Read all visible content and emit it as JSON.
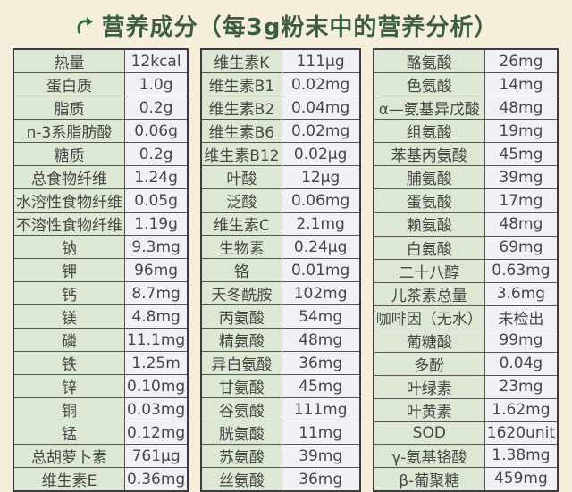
{
  "page": {
    "title": "营养成分（每3g粉末中的营养分析）",
    "icon": "curved-arrow-icon",
    "colors": {
      "background": "#f5eedb",
      "title": "#3b5d40",
      "label_bg": "#dce7d4",
      "value_bg": "#f1f1f5",
      "border": "#555555",
      "outer_border": "#3d3d3d",
      "text": "#474747",
      "icon": "#2f6b3c"
    }
  },
  "tables": [
    {
      "rows": [
        {
          "label": "热量",
          "value": "12kcal"
        },
        {
          "label": "蛋白质",
          "value": "1.0g"
        },
        {
          "label": "脂质",
          "value": "0.2g"
        },
        {
          "label": "n-3系脂肪酸",
          "value": "0.06g"
        },
        {
          "label": "糖质",
          "value": "0.2g"
        },
        {
          "label": "总食物纤维",
          "value": "1.24g"
        },
        {
          "label": "水溶性食物纤维",
          "value": "0.05g"
        },
        {
          "label": "不溶性食物纤维",
          "value": "1.19g"
        },
        {
          "label": "钠",
          "value": "9.3mg"
        },
        {
          "label": "钾",
          "value": "96mg"
        },
        {
          "label": "钙",
          "value": "8.7mg"
        },
        {
          "label": "镁",
          "value": "4.8mg"
        },
        {
          "label": "磷",
          "value": "11.1mg"
        },
        {
          "label": "铁",
          "value": "1.25m"
        },
        {
          "label": "锌",
          "value": "0.10mg"
        },
        {
          "label": "铜",
          "value": "0.03mg"
        },
        {
          "label": "锰",
          "value": "0.12mg"
        },
        {
          "label": "总胡萝卜素",
          "value": "761μg"
        },
        {
          "label": "维生素E",
          "value": "0.36mg"
        }
      ]
    },
    {
      "rows": [
        {
          "label": "维生素K",
          "value": "111μg"
        },
        {
          "label": "维生素B1",
          "value": "0.02mg"
        },
        {
          "label": "维生素B2",
          "value": "0.04mg"
        },
        {
          "label": "维生素B6",
          "value": "0.02mg"
        },
        {
          "label": "维生素B12",
          "value": "0.02μg"
        },
        {
          "label": "叶酸",
          "value": "12μg"
        },
        {
          "label": "泛酸",
          "value": "0.06mg"
        },
        {
          "label": "维生素C",
          "value": "2.1mg"
        },
        {
          "label": "生物素",
          "value": "0.24μg"
        },
        {
          "label": "铬",
          "value": "0.01mg"
        },
        {
          "label": "天冬酰胺",
          "value": "102mg"
        },
        {
          "label": "丙氨酸",
          "value": "54mg"
        },
        {
          "label": "精氨酸",
          "value": "48mg"
        },
        {
          "label": "异白氨酸",
          "value": "36mg"
        },
        {
          "label": "甘氨酸",
          "value": "45mg"
        },
        {
          "label": "谷氨酸",
          "value": "111mg"
        },
        {
          "label": "胱氨酸",
          "value": "11mg"
        },
        {
          "label": "苏氨酸",
          "value": "39mg"
        },
        {
          "label": "丝氨酸",
          "value": "36mg"
        }
      ]
    },
    {
      "rows": [
        {
          "label": "酪氨酸",
          "value": "26mg"
        },
        {
          "label": "色氨酸",
          "value": "14mg"
        },
        {
          "label": "α—氨基异戊酸",
          "value": "48mg"
        },
        {
          "label": "组氨酸",
          "value": "19mg"
        },
        {
          "label": "苯基丙氨酸",
          "value": "45mg"
        },
        {
          "label": "脯氨酸",
          "value": "39mg"
        },
        {
          "label": "蛋氨酸",
          "value": "17mg"
        },
        {
          "label": "赖氨酸",
          "value": "48mg"
        },
        {
          "label": "白氨酸",
          "value": "69mg"
        },
        {
          "label": "二十八醇",
          "value": "0.63mg"
        },
        {
          "label": "儿茶素总量",
          "value": "3.6mg"
        },
        {
          "label": "咖啡因（无水）",
          "value": "未检出"
        },
        {
          "label": "葡糖酸",
          "value": "99mg"
        },
        {
          "label": "多酚",
          "value": "0.04g"
        },
        {
          "label": "叶绿素",
          "value": "23mg"
        },
        {
          "label": "叶黄素",
          "value": "1.62mg"
        },
        {
          "label": "SOD",
          "value": "1620unit"
        },
        {
          "label": "γ-氨基铬酸",
          "value": "1.38mg"
        },
        {
          "label": "β-葡聚糖",
          "value": "459mg"
        }
      ]
    }
  ]
}
